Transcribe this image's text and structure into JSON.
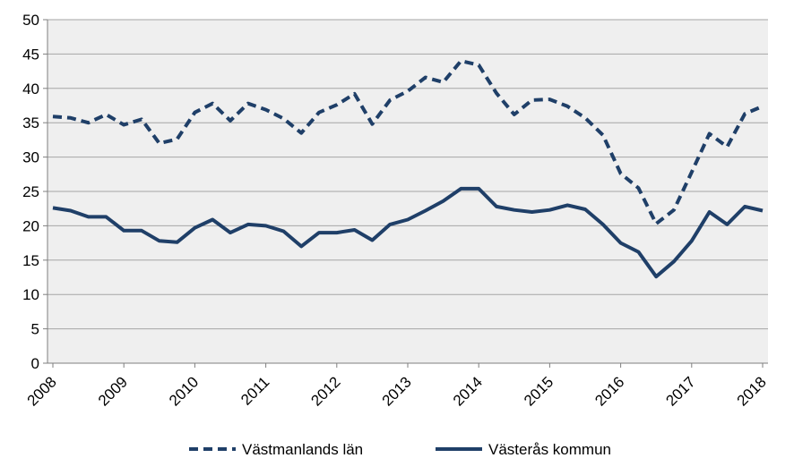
{
  "chart_data": {
    "type": "line",
    "title": "",
    "xlabel": "",
    "ylabel": "",
    "ylim": [
      0,
      50
    ],
    "yticks": [
      0,
      5,
      10,
      15,
      20,
      25,
      30,
      35,
      40,
      45,
      50
    ],
    "xticks": [
      "2008",
      "2009",
      "2010",
      "2011",
      "2012",
      "2013",
      "2014",
      "2015",
      "2016",
      "2017",
      "2018"
    ],
    "grid": true,
    "legend_position": "bottom",
    "x_start": "2008",
    "points_per_year": 4,
    "series": [
      {
        "name": "Västmanlands län",
        "style": "dashed",
        "color": "#1f3f68",
        "values": [
          35.9,
          35.7,
          35.0,
          36.2,
          34.7,
          35.5,
          32.0,
          32.6,
          36.5,
          37.8,
          35.3,
          37.8,
          36.9,
          35.6,
          33.5,
          36.5,
          37.6,
          39.2,
          34.8,
          38.3,
          39.6,
          41.6,
          40.9,
          44.0,
          43.4,
          39.3,
          36.2,
          38.3,
          38.4,
          37.4,
          35.7,
          33.2,
          27.6,
          25.5,
          20.3,
          22.3,
          27.8,
          33.4,
          31.5,
          36.3,
          37.4
        ]
      },
      {
        "name": "Västerås kommun",
        "style": "solid",
        "color": "#1f3f68",
        "values": [
          22.6,
          22.2,
          21.3,
          21.3,
          19.3,
          19.3,
          17.8,
          17.6,
          19.7,
          20.9,
          19.0,
          20.2,
          20.0,
          19.2,
          17.0,
          19.0,
          19.0,
          19.4,
          17.9,
          20.2,
          20.9,
          22.2,
          23.6,
          25.4,
          25.4,
          22.8,
          22.3,
          22.0,
          22.3,
          23.0,
          22.4,
          20.2,
          17.5,
          16.2,
          12.6,
          14.8,
          17.8,
          22.0,
          20.2,
          22.8,
          22.2
        ]
      }
    ]
  }
}
